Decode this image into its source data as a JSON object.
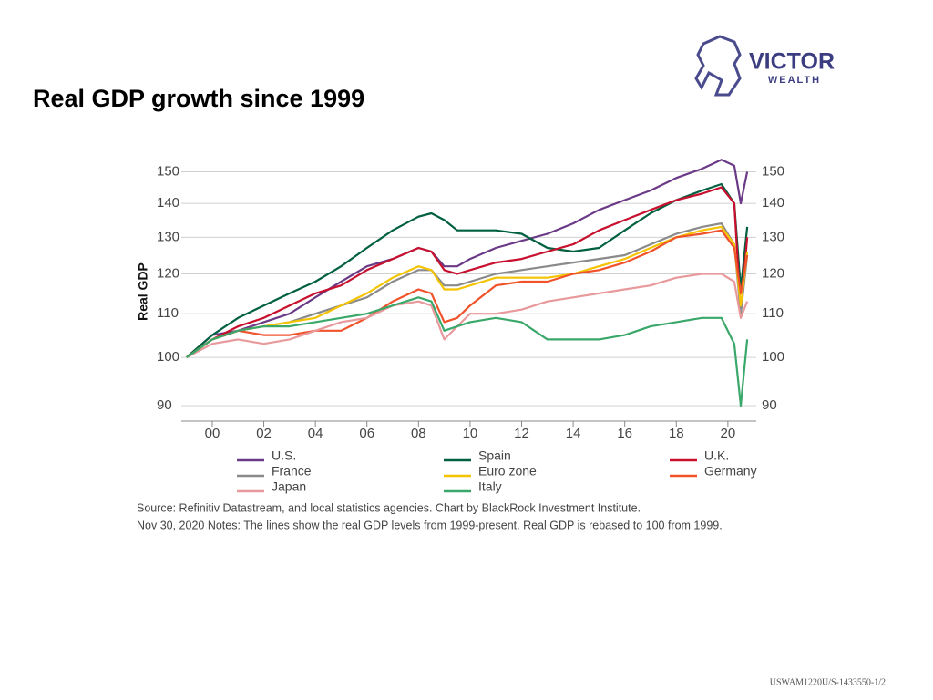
{
  "logo": {
    "name": "VICTOR",
    "sub": "WEALTH"
  },
  "footer": "USWAM1220U/S-1433550-1/2",
  "chart_data": {
    "type": "line",
    "title": "Real GDP growth since 1999",
    "y_label": "Real GDP",
    "source": "Source: Refinitiv Datastream, and local statistics agencies.  Chart by BlackRock Investment Institute.",
    "notes": "Nov 30, 2020 Notes: The lines show the real GDP levels from 1999-present. Real GDP is rebased to 100 from 1999.",
    "log_scale": true,
    "grid": true,
    "xlim": [
      1998.8,
      2021.1
    ],
    "ylim": [
      87,
      155
    ],
    "xticks": [
      {
        "value": 2000,
        "label": "00"
      },
      {
        "value": 2002,
        "label": "02"
      },
      {
        "value": 2004,
        "label": "04"
      },
      {
        "value": 2006,
        "label": "06"
      },
      {
        "value": 2008,
        "label": "08"
      },
      {
        "value": 2010,
        "label": "10"
      },
      {
        "value": 2012,
        "label": "12"
      },
      {
        "value": 2014,
        "label": "14"
      },
      {
        "value": 2016,
        "label": "16"
      },
      {
        "value": 2018,
        "label": "18"
      },
      {
        "value": 2020,
        "label": "20"
      }
    ],
    "yticks": [
      90,
      100,
      110,
      120,
      130,
      140,
      150
    ],
    "x": [
      1999,
      2000,
      2001,
      2002,
      2003,
      2004,
      2005,
      2006,
      2007,
      2008,
      2008.5,
      2009,
      2009.5,
      2010,
      2011,
      2012,
      2013,
      2014,
      2015,
      2016,
      2017,
      2018,
      2019,
      2019.75,
      2020.25,
      2020.5,
      2020.75
    ],
    "series": [
      {
        "name": "U.S.",
        "color": "#6b3a87",
        "values": [
          100,
          105,
          106,
          108,
          110,
          114,
          118,
          122,
          124,
          127,
          126,
          122,
          122,
          124,
          127,
          129,
          131,
          134,
          138,
          141,
          144,
          148,
          151,
          154,
          152,
          140,
          150
        ]
      },
      {
        "name": "Spain",
        "color": "#00603f",
        "values": [
          100,
          105,
          109,
          112,
          115,
          118,
          122,
          127,
          132,
          136,
          137,
          135,
          132,
          132,
          132,
          131,
          127,
          126,
          127,
          132,
          137,
          141,
          144,
          146,
          140,
          116,
          133
        ]
      },
      {
        "name": "U.K.",
        "color": "#c8102e",
        "values": [
          100,
          104,
          107,
          109,
          112,
          115,
          117,
          121,
          124,
          127,
          126,
          121,
          120,
          121,
          123,
          124,
          126,
          128,
          132,
          135,
          138,
          141,
          143,
          145,
          140,
          110,
          130
        ]
      },
      {
        "name": "France",
        "color": "#8a8a8a",
        "values": [
          100,
          104,
          106,
          107,
          108,
          110,
          112,
          114,
          118,
          121,
          121,
          117,
          117,
          118,
          120,
          121,
          122,
          123,
          124,
          125,
          128,
          131,
          133,
          134,
          128,
          110,
          125
        ]
      },
      {
        "name": "Euro zone",
        "color": "#f5c400",
        "values": [
          100,
          104,
          106,
          107,
          108,
          109,
          112,
          115,
          119,
          122,
          121,
          116,
          116,
          117,
          119,
          119,
          119,
          120,
          122,
          124,
          127,
          130,
          132,
          133,
          128,
          112,
          126
        ]
      },
      {
        "name": "Germany",
        "color": "#f0522a",
        "values": [
          100,
          104,
          106,
          105,
          105,
          106,
          106,
          109,
          113,
          116,
          115,
          108,
          109,
          112,
          117,
          118,
          118,
          120,
          121,
          123,
          126,
          130,
          131,
          132,
          127,
          115,
          125
        ]
      },
      {
        "name": "Japan",
        "color": "#e8999c",
        "values": [
          100,
          103,
          104,
          103,
          104,
          106,
          108,
          109,
          112,
          113,
          112,
          104,
          107,
          110,
          110,
          111,
          113,
          114,
          115,
          116,
          117,
          119,
          120,
          120,
          118,
          109,
          113
        ]
      },
      {
        "name": "Italy",
        "color": "#3aa86a",
        "values": [
          100,
          104,
          106,
          107,
          107,
          108,
          109,
          110,
          112,
          114,
          113,
          106,
          107,
          108,
          109,
          108,
          104,
          104,
          104,
          105,
          107,
          108,
          109,
          109,
          103,
          90,
          104
        ]
      }
    ]
  }
}
